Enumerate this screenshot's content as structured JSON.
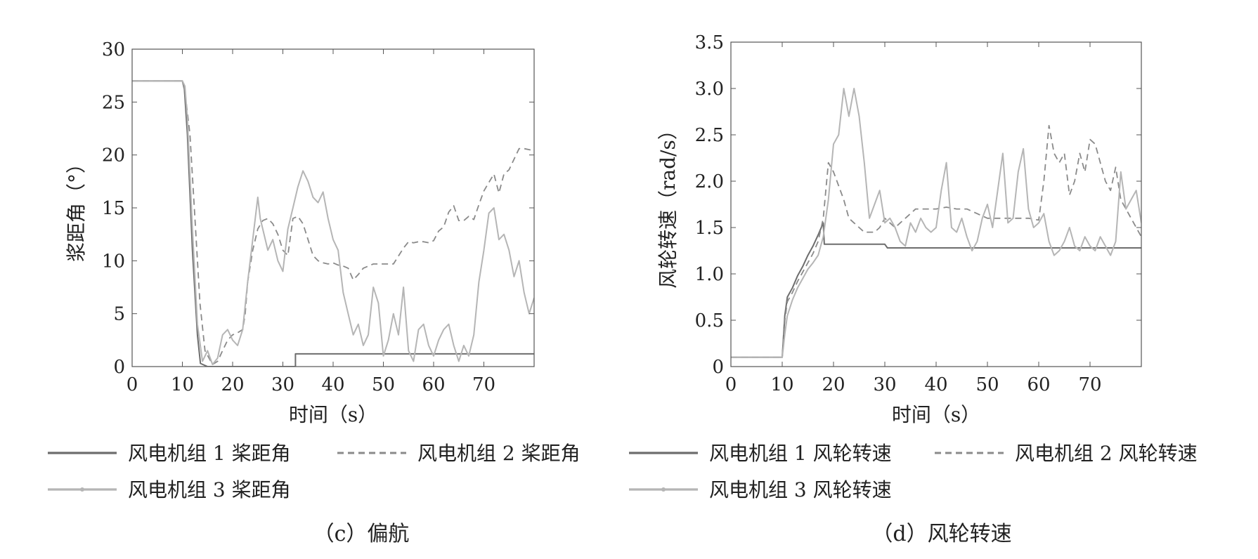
{
  "chart_data": [
    {
      "type": "line",
      "title": "",
      "caption": "（c）偏航",
      "xlabel": "时间（s）",
      "ylabel": "浆距角（°）",
      "xlim": [
        0,
        80
      ],
      "ylim": [
        0,
        30
      ],
      "xticks": [
        0,
        10,
        20,
        30,
        40,
        50,
        60,
        70
      ],
      "yticks": [
        0,
        5,
        10,
        15,
        20,
        25,
        30
      ],
      "grid": false,
      "legend_position": "bottom",
      "series": [
        {
          "name": "风电机组 1 桨距角",
          "style": "solid-dark",
          "color": "#6d6d6d",
          "x": [
            0,
            10,
            10.4,
            11,
            12,
            13,
            13.6,
            15,
            18,
            32.5,
            32.5,
            80
          ],
          "y": [
            27,
            27,
            26.2,
            22,
            11,
            3,
            0.3,
            0,
            0,
            0,
            1.2,
            1.2
          ]
        },
        {
          "name": "风电机组 2 桨距角",
          "style": "dashed",
          "color": "#8a8a8a",
          "x": [
            0,
            10,
            10.5,
            11.5,
            12.5,
            13.5,
            14.5,
            16,
            17,
            18,
            19,
            20,
            21,
            22,
            22.5,
            23,
            24,
            25,
            26,
            27,
            28,
            29,
            30,
            31,
            32,
            33,
            34,
            35,
            36,
            37,
            38,
            39,
            40,
            41,
            42,
            43,
            44,
            45,
            46,
            47,
            48,
            50,
            52,
            54,
            55,
            56,
            57,
            58,
            59,
            60,
            61,
            62,
            63,
            64,
            65,
            66,
            67,
            68,
            69,
            70,
            71,
            72,
            73,
            74,
            75,
            76,
            77,
            78,
            79,
            80
          ],
          "y": [
            27,
            27,
            26,
            22,
            14,
            6,
            1.5,
            0.2,
            0.5,
            1.5,
            2.5,
            3,
            3.2,
            3.5,
            5,
            8,
            11,
            13,
            13.8,
            14,
            13.5,
            12.5,
            11,
            10.5,
            14,
            14.2,
            13.5,
            12,
            10.5,
            10,
            9.8,
            9.7,
            9.8,
            9.6,
            9.5,
            9.3,
            8.2,
            8.7,
            9.3,
            9.5,
            9.7,
            9.7,
            9.7,
            11.2,
            11.8,
            11.7,
            11.8,
            11.8,
            11.7,
            11.9,
            12.8,
            13.2,
            14.6,
            15.2,
            13.8,
            13.8,
            14.2,
            13.9,
            15.3,
            16.6,
            17.4,
            18.2,
            16.4,
            18.2,
            18.6,
            19.6,
            20.6,
            20.6,
            20.5,
            20.4
          ]
        },
        {
          "name": "风电机组 3 桨距角",
          "style": "solid-light",
          "color": "#b5b5b5",
          "x": [
            0,
            10,
            10.5,
            11,
            12,
            13,
            14,
            15,
            16,
            17,
            18,
            19,
            20,
            21,
            22,
            23,
            23.5,
            24,
            25,
            25.5,
            26,
            27,
            28,
            29,
            30,
            31,
            32,
            33,
            34,
            35,
            36,
            37,
            38,
            39,
            40,
            41,
            42,
            43,
            44,
            45,
            46,
            47,
            48,
            49,
            50,
            51,
            52,
            53,
            54,
            55,
            56,
            57,
            58,
            59,
            60,
            61,
            62,
            63,
            64,
            65,
            66,
            67,
            68,
            69,
            70,
            71,
            72,
            73,
            74,
            75,
            76,
            77,
            78,
            79,
            80
          ],
          "y": [
            27,
            27,
            26.5,
            23.5,
            13,
            4,
            0.5,
            1.5,
            0.2,
            0.8,
            3,
            3.5,
            2.5,
            2,
            3.5,
            8,
            10,
            12,
            16,
            14,
            13,
            11,
            12,
            10,
            9,
            13,
            15,
            17,
            18.5,
            17.5,
            16,
            15.5,
            16.5,
            14,
            12,
            11,
            7,
            5,
            3,
            4,
            2,
            3,
            7.5,
            6,
            1,
            2.5,
            5,
            3,
            7.5,
            1.5,
            0.5,
            3.5,
            4,
            2,
            1,
            2.5,
            3.5,
            4,
            2,
            0.5,
            2,
            1,
            3,
            8,
            11,
            14.5,
            15,
            12,
            12.5,
            11,
            8.5,
            10,
            7,
            5,
            6.5
          ]
        }
      ]
    },
    {
      "type": "line",
      "title": "",
      "caption": "（d）风轮转速",
      "xlabel": "时间（s）",
      "ylabel": "风轮转速（rad/s）",
      "xlim": [
        0,
        80
      ],
      "ylim": [
        0,
        3.5
      ],
      "xticks": [
        0,
        10,
        20,
        30,
        40,
        50,
        60,
        70
      ],
      "yticks": [
        0,
        0.5,
        1.0,
        1.5,
        2.0,
        2.5,
        3.0,
        3.5
      ],
      "ytick_labels": [
        "0",
        "0.5",
        "1.0",
        "1.5",
        "2.0",
        "2.5",
        "3.0",
        "3.5"
      ],
      "grid": false,
      "legend_position": "bottom",
      "series": [
        {
          "name": "风电机组 1 风轮转速",
          "style": "solid-dark",
          "color": "#6d6d6d",
          "x": [
            0,
            10,
            10.5,
            11,
            12,
            13,
            14,
            15,
            16,
            17,
            18,
            18.2,
            30,
            30.5,
            80
          ],
          "y": [
            0.1,
            0.1,
            0.55,
            0.75,
            0.85,
            0.98,
            1.08,
            1.2,
            1.3,
            1.42,
            1.55,
            1.32,
            1.32,
            1.28,
            1.28
          ]
        },
        {
          "name": "风电机组 2 风轮转速",
          "style": "dashed",
          "color": "#8a8a8a",
          "x": [
            0,
            10,
            10.5,
            11,
            12,
            13,
            14,
            15,
            16,
            17,
            18,
            19,
            20,
            21,
            22,
            23,
            24,
            25,
            26,
            27,
            28,
            29,
            30,
            31,
            32,
            33,
            34,
            35,
            36,
            37,
            38,
            40,
            42,
            44,
            46,
            48,
            50,
            52,
            54,
            56,
            58,
            60,
            61,
            62,
            63,
            64,
            65,
            66,
            67,
            68,
            69,
            70,
            71,
            72,
            73,
            74,
            75,
            76,
            77,
            78,
            79,
            80
          ],
          "y": [
            0.1,
            0.1,
            0.5,
            0.7,
            0.8,
            0.92,
            1.02,
            1.12,
            1.22,
            1.35,
            1.6,
            2.2,
            2.1,
            1.95,
            1.8,
            1.6,
            1.55,
            1.5,
            1.45,
            1.45,
            1.45,
            1.5,
            1.6,
            1.55,
            1.5,
            1.55,
            1.6,
            1.65,
            1.7,
            1.7,
            1.7,
            1.7,
            1.72,
            1.7,
            1.7,
            1.65,
            1.6,
            1.6,
            1.6,
            1.6,
            1.6,
            1.58,
            2.0,
            2.6,
            2.3,
            2.2,
            2.3,
            1.85,
            2.0,
            2.3,
            2.1,
            2.45,
            2.4,
            2.2,
            2.0,
            1.9,
            2.15,
            1.8,
            1.7,
            1.6,
            1.5,
            1.4
          ]
        },
        {
          "name": "风电机组 3 风轮转速",
          "style": "solid-light",
          "color": "#b5b5b5",
          "x": [
            0,
            10,
            10.5,
            11,
            12,
            13,
            14,
            15,
            16,
            17,
            18,
            19,
            20,
            21,
            22,
            23,
            24,
            25,
            26,
            27,
            28,
            29,
            30,
            31,
            32,
            33,
            34,
            35,
            36,
            37,
            38,
            39,
            40,
            41,
            42,
            43,
            44,
            45,
            46,
            47,
            48,
            49,
            50,
            51,
            52,
            53,
            54,
            55,
            56,
            57,
            58,
            59,
            60,
            61,
            62,
            63,
            64,
            65,
            66,
            67,
            68,
            69,
            70,
            71,
            72,
            73,
            74,
            75,
            76,
            77,
            78,
            79,
            80
          ],
          "y": [
            0.1,
            0.1,
            0.35,
            0.55,
            0.72,
            0.85,
            0.95,
            1.05,
            1.12,
            1.2,
            1.4,
            1.8,
            2.4,
            2.5,
            3.0,
            2.7,
            3.0,
            2.7,
            2.2,
            1.6,
            1.75,
            1.9,
            1.55,
            1.6,
            1.5,
            1.35,
            1.3,
            1.55,
            1.45,
            1.6,
            1.5,
            1.45,
            1.5,
            1.9,
            2.2,
            1.5,
            1.45,
            1.6,
            1.4,
            1.25,
            1.35,
            1.6,
            1.75,
            1.5,
            1.9,
            2.3,
            1.55,
            1.6,
            2.1,
            2.35,
            1.7,
            1.5,
            1.55,
            1.65,
            1.35,
            1.2,
            1.25,
            1.35,
            1.5,
            1.3,
            1.25,
            1.4,
            1.3,
            1.25,
            1.4,
            1.3,
            1.2,
            1.35,
            2.1,
            1.7,
            1.8,
            1.9,
            1.55
          ]
        }
      ]
    }
  ]
}
